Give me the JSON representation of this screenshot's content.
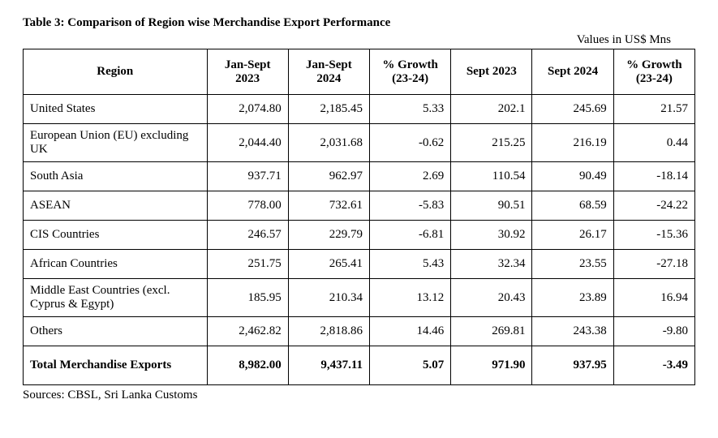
{
  "title": "Table 3: Comparison of Region wise Merchandise Export Performance",
  "units_label": "Values in US$ Mns",
  "columns": [
    "Region",
    "Jan-Sept 2023",
    "Jan-Sept 2024",
    "% Growth (23-24)",
    "Sept 2023",
    "Sept 2024",
    "% Growth (23-24)"
  ],
  "rows": [
    {
      "region": "United States",
      "js2023": "2,074.80",
      "js2024": "2,185.45",
      "g1": "5.33",
      "s2023": "202.1",
      "s2024": "245.69",
      "g2": "21.57"
    },
    {
      "region": "European Union (EU) excluding UK",
      "js2023": "2,044.40",
      "js2024": "2,031.68",
      "g1": "-0.62",
      "s2023": "215.25",
      "s2024": "216.19",
      "g2": "0.44"
    },
    {
      "region": "South Asia",
      "js2023": "937.71",
      "js2024": "962.97",
      "g1": "2.69",
      "s2023": "110.54",
      "s2024": "90.49",
      "g2": "-18.14"
    },
    {
      "region": "ASEAN",
      "js2023": "778.00",
      "js2024": "732.61",
      "g1": "-5.83",
      "s2023": "90.51",
      "s2024": "68.59",
      "g2": "-24.22"
    },
    {
      "region": "CIS Countries",
      "js2023": "246.57",
      "js2024": "229.79",
      "g1": "-6.81",
      "s2023": "30.92",
      "s2024": "26.17",
      "g2": "-15.36"
    },
    {
      "region": "African Countries",
      "js2023": "251.75",
      "js2024": "265.41",
      "g1": "5.43",
      "s2023": "32.34",
      "s2024": "23.55",
      "g2": "-27.18"
    },
    {
      "region": "Middle East Countries (excl. Cyprus & Egypt)",
      "js2023": "185.95",
      "js2024": "210.34",
      "g1": "13.12",
      "s2023": "20.43",
      "s2024": "23.89",
      "g2": "16.94"
    },
    {
      "region": "Others",
      "js2023": "2,462.82",
      "js2024": "2,818.86",
      "g1": "14.46",
      "s2023": "269.81",
      "s2024": "243.38",
      "g2": "-9.80"
    }
  ],
  "total": {
    "region": "Total Merchandise Exports",
    "js2023": "8,982.00",
    "js2024": "9,437.11",
    "g1": "5.07",
    "s2023": "971.90",
    "s2024": "937.95",
    "g2": "-3.49"
  },
  "sources": "Sources: CBSL, Sri Lanka Customs",
  "style": {
    "font_family": "Times New Roman",
    "title_fontsize": 15,
    "cell_fontsize": 15,
    "border_color": "#000000",
    "background_color": "#ffffff",
    "text_color": "#000000",
    "region_align": "left",
    "number_align": "right",
    "header_align": "center"
  }
}
